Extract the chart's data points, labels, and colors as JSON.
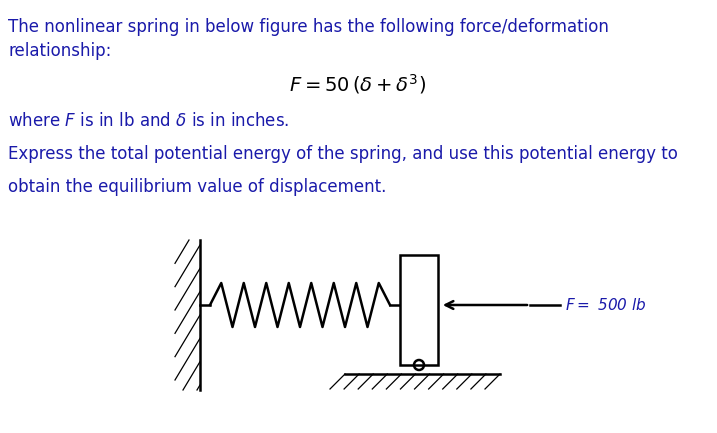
{
  "background_color": "#ffffff",
  "text_color": "#1a1aaa",
  "diagram_color": "#000000",
  "force_label_color": "#1a1aaa",
  "title_line1": "The nonlinear spring in below figure has the following force/deformation",
  "title_line2": "relationship:",
  "formula": "$F = 50\\,(\\delta + \\delta^3)$",
  "where_text": "where $F$ is in lb and $\\delta$ is in inches.",
  "express_line1": "Express the total potential energy of the spring, and use this potential energy to",
  "express_line2": "obtain the equilibrium value of displacement.",
  "force_label": "$F=$ 500 lb",
  "font_size_body": 12,
  "font_size_formula": 14
}
